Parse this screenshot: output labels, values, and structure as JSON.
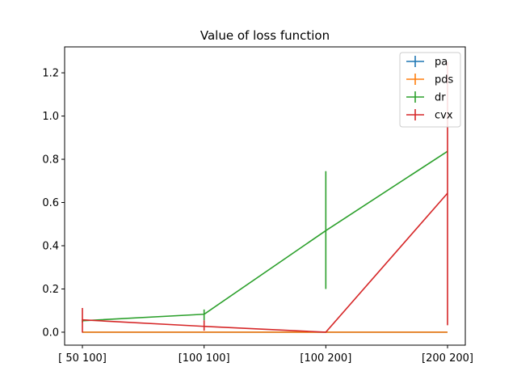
{
  "chart_data": {
    "type": "line",
    "title": "Value of loss function",
    "xlabel": "",
    "ylabel": "",
    "categories": [
      "[ 50 100]",
      "[100 100]",
      "[100 200]",
      "[200 200]"
    ],
    "ylim": [
      -0.06,
      1.32
    ],
    "yticks": [
      0.0,
      0.2,
      0.4,
      0.6,
      0.8,
      1.0,
      1.2
    ],
    "ytick_labels": [
      "0.0",
      "0.2",
      "0.4",
      "0.6",
      "0.8",
      "1.0",
      "1.2"
    ],
    "grid": false,
    "legend_position": "top-right",
    "series": [
      {
        "name": "pa",
        "color": "#1f77b4",
        "values": [
          0.0,
          0.0,
          0.0,
          0.0
        ],
        "err_low": [
          0.0,
          0.0,
          0.0,
          0.0
        ],
        "err_high": [
          0.0,
          0.0,
          0.0,
          0.0
        ]
      },
      {
        "name": "pds",
        "color": "#ff7f0e",
        "values": [
          0.0,
          0.0,
          0.0,
          0.0
        ],
        "err_low": [
          0.0,
          0.0,
          0.0,
          0.0
        ],
        "err_high": [
          0.0,
          0.0,
          0.0,
          0.0
        ]
      },
      {
        "name": "dr",
        "color": "#2ca02c",
        "values": [
          0.053,
          0.083,
          0.47,
          0.837
        ],
        "err_low": [
          0.045,
          0.055,
          0.2,
          0.837
        ],
        "err_high": [
          0.06,
          0.105,
          0.745,
          0.837
        ]
      },
      {
        "name": "cvx",
        "color": "#d62728",
        "values": [
          0.057,
          0.027,
          0.0,
          0.643
        ],
        "err_low": [
          -0.002,
          0.007,
          0.0,
          0.032
        ],
        "err_high": [
          0.112,
          0.055,
          0.0,
          1.25
        ]
      }
    ]
  }
}
